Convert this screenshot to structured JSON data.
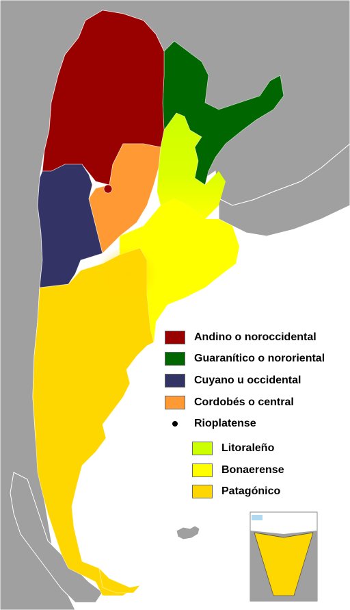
{
  "legend": {
    "items": [
      {
        "label": "Andino o noroccidental",
        "color": "#990000",
        "kind": "swatch"
      },
      {
        "label": "Guaranítico o nororiental",
        "color": "#006600",
        "kind": "swatch"
      },
      {
        "label": "Cuyano u occidental",
        "color": "#333366",
        "kind": "swatch"
      },
      {
        "label": "Cordobés o central",
        "color": "#FF9933",
        "kind": "swatch"
      },
      {
        "label": "Rioplatense",
        "color": "#000000",
        "kind": "dot"
      },
      {
        "label": "Litoraleño",
        "color": "#CCFF00",
        "kind": "swatch"
      },
      {
        "label": "Bonaerense",
        "color": "#FFFF00",
        "kind": "swatch"
      },
      {
        "label": "Patagónico",
        "color": "#FFD700",
        "kind": "swatch"
      }
    ]
  },
  "colors": {
    "background": "#FFFFFF",
    "neighbor_land": "#A0A0A0",
    "borders": "#FFFFFF"
  }
}
